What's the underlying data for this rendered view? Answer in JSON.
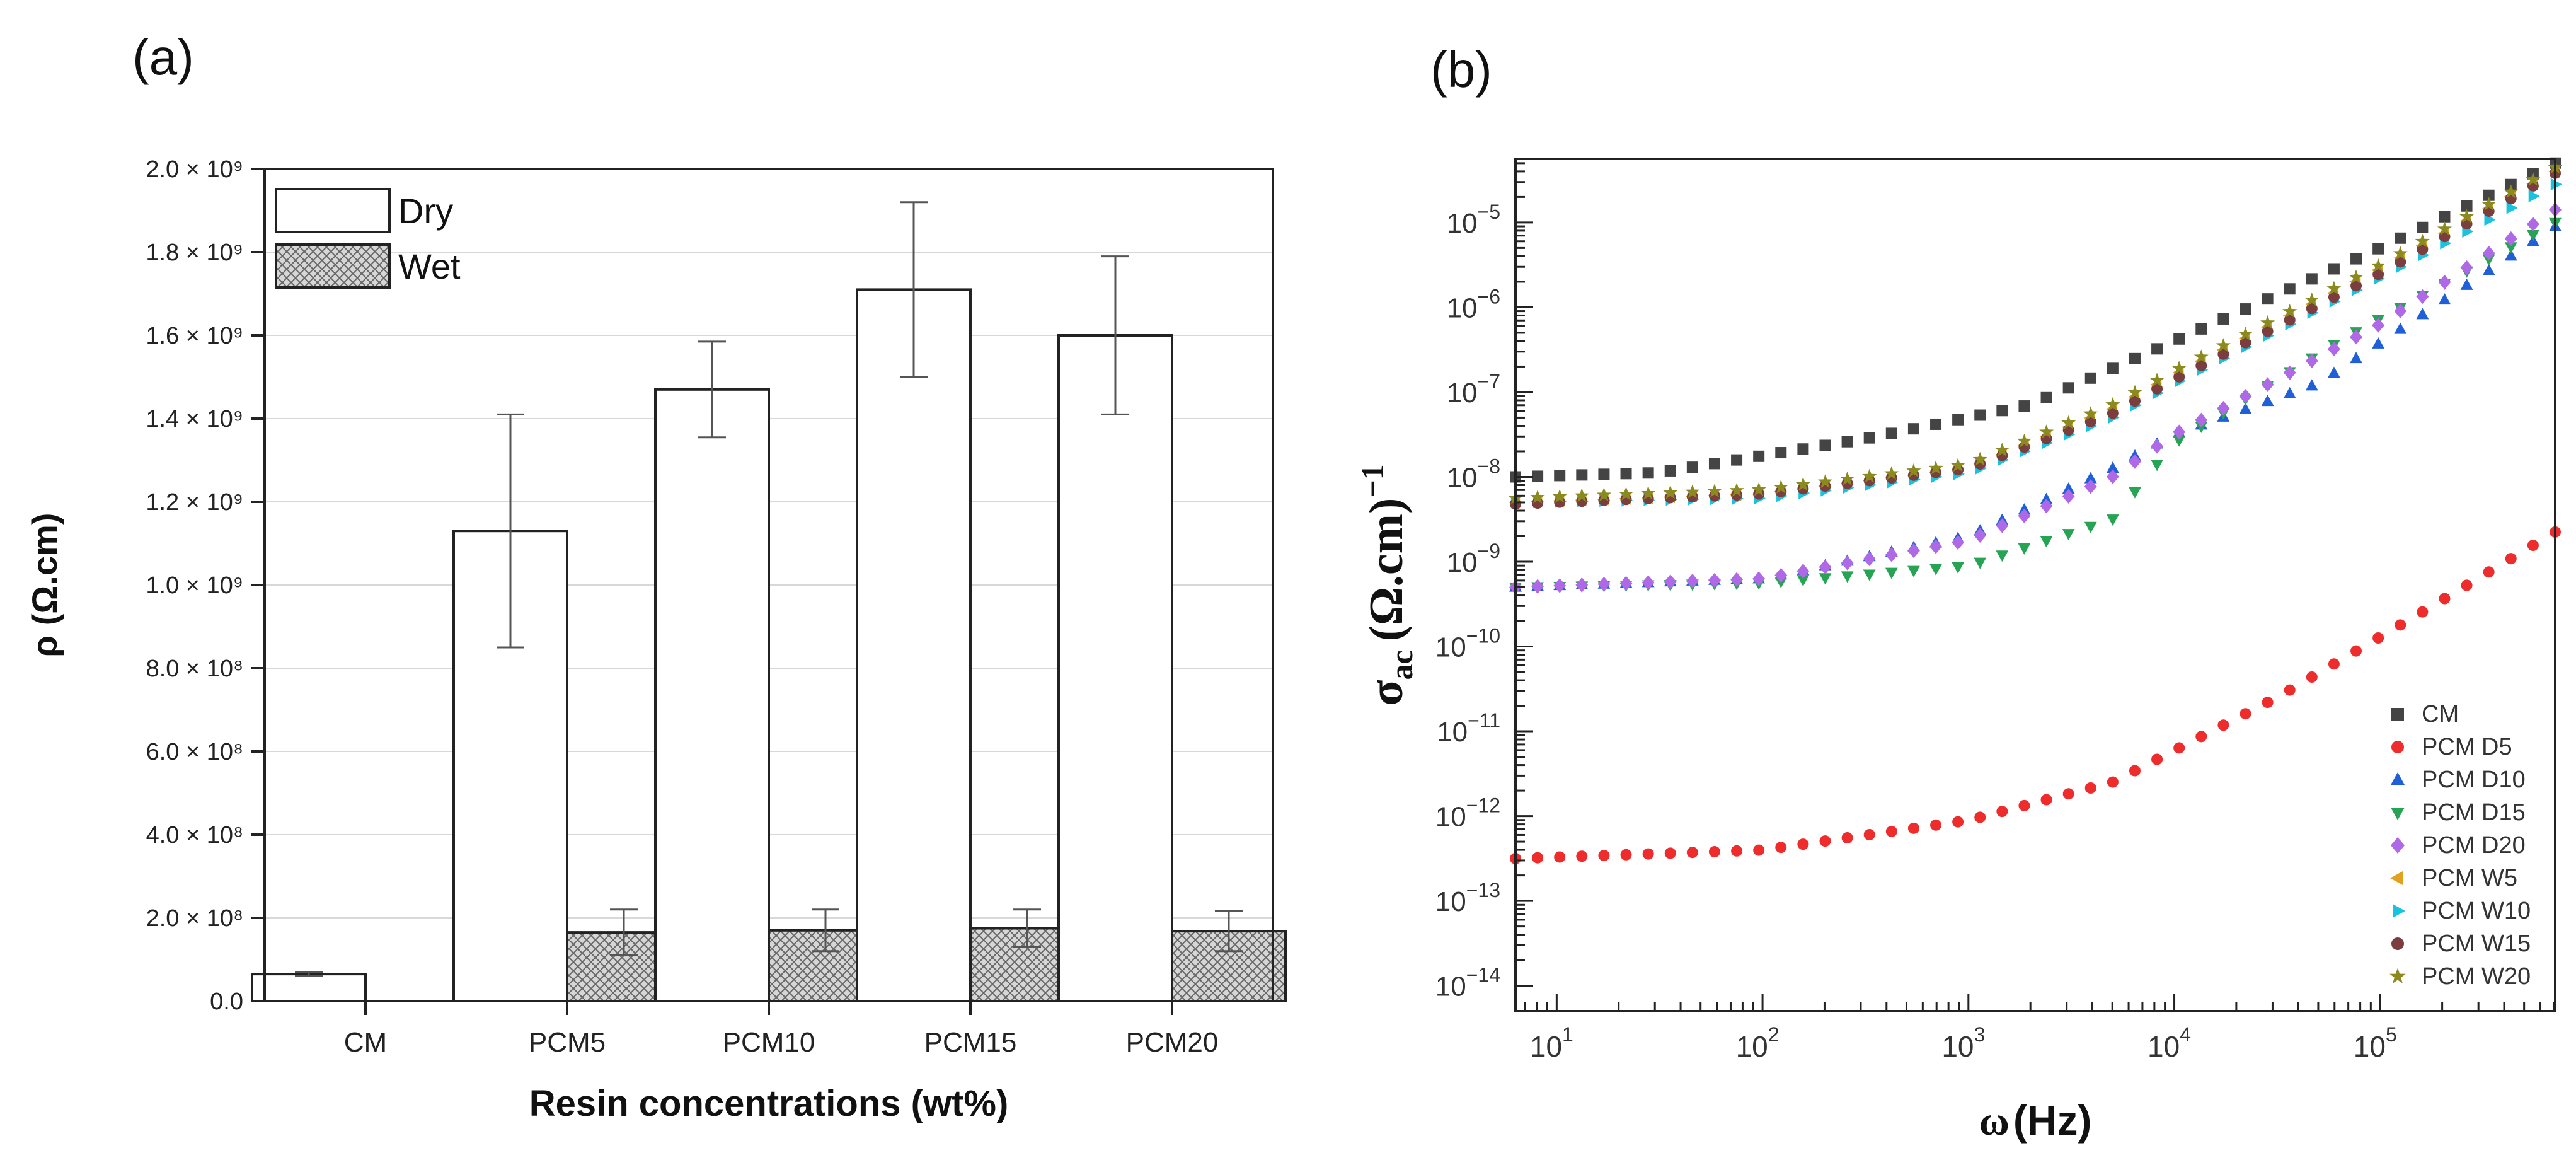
{
  "panels": {
    "a": {
      "label": "(a)"
    },
    "b": {
      "label": "(b)"
    }
  },
  "chart_data": [
    {
      "id": "a",
      "type": "bar",
      "title": "",
      "xlabel": "Resin concentrations (wt%)",
      "ylabel": "ρ (Ω.cm)",
      "categories": [
        "CM",
        "PCM5",
        "PCM10",
        "PCM15",
        "PCM20"
      ],
      "ylim": [
        0,
        2000000000
      ],
      "ytick_values": [
        0,
        200000000,
        400000000,
        600000000,
        800000000,
        1000000000,
        1200000000,
        1400000000,
        1600000000,
        1800000000,
        2000000000
      ],
      "ytick_labels": [
        "0.0",
        "2.0 × 10⁸",
        "4.0 × 10⁸",
        "6.0 × 10⁸",
        "8.0 × 10⁸",
        "1.0 × 10⁹",
        "1.2 × 10⁹",
        "1.4 × 10⁹",
        "1.6 × 10⁹",
        "1.8 × 10⁹",
        "2.0 × 10⁹"
      ],
      "legend_position": "top-left",
      "series": [
        {
          "name": "Dry",
          "pattern": "open",
          "values": [
            65000000,
            1130000000,
            1470000000,
            1710000000,
            1600000000
          ],
          "err": [
            5000000,
            280000000,
            115000000,
            210000000,
            190000000
          ]
        },
        {
          "name": "Wet",
          "pattern": "crosshatch",
          "values": [
            0,
            165000000,
            170000000,
            175000000,
            168000000
          ],
          "err": [
            0,
            55000000,
            50000000,
            45000000,
            48000000
          ]
        }
      ]
    },
    {
      "id": "b",
      "type": "scatter",
      "xscale": "log",
      "yscale": "log",
      "xlabel_main": "ω",
      "xlabel_unit": "(Hz)",
      "ylabel_main": "σ",
      "ylabel_sub": "ac",
      "ylabel_unit": "(Ω.cm)",
      "ylabel_sup": "−1",
      "xlim_log10": [
        0.8,
        5.85
      ],
      "ylim_log10": [
        -14.3,
        -4.25
      ],
      "xtick_exponents": [
        1,
        2,
        3,
        4,
        5
      ],
      "ytick_exponents": [
        -14,
        -13,
        -12,
        -11,
        -10,
        -9,
        -8,
        -7,
        -6,
        -5
      ],
      "tick_base": "10",
      "legend_position": "bottom-right",
      "n_points": 48,
      "series": [
        {
          "name": "CM",
          "color": "#444444",
          "marker": "square",
          "anchors": [
            [
              0.8,
              -8.0
            ],
            [
              1.5,
              -7.95
            ],
            [
              2.5,
              -7.55
            ],
            [
              3.3,
              -7.15
            ],
            [
              4.0,
              -6.4
            ],
            [
              5.0,
              -5.3
            ],
            [
              5.85,
              -4.3
            ]
          ]
        },
        {
          "name": "PCM D5",
          "color": "#ee2c2c",
          "marker": "circle",
          "anchors": [
            [
              0.8,
              -12.5
            ],
            [
              2.0,
              -12.4
            ],
            [
              3.0,
              -12.05
            ],
            [
              3.7,
              -11.6
            ],
            [
              4.5,
              -10.6
            ],
            [
              5.2,
              -9.6
            ],
            [
              5.85,
              -8.65
            ]
          ]
        },
        {
          "name": "PCM D10",
          "color": "#1f5fd8",
          "marker": "triangle-up",
          "anchors": [
            [
              0.8,
              -9.3
            ],
            [
              2.0,
              -9.2
            ],
            [
              2.5,
              -8.95
            ],
            [
              3.0,
              -8.7
            ],
            [
              3.7,
              -7.9
            ],
            [
              4.0,
              -7.5
            ],
            [
              4.7,
              -6.9
            ],
            [
              5.85,
              -5.05
            ]
          ]
        },
        {
          "name": "PCM D15",
          "color": "#27a453",
          "marker": "triangle-down",
          "anchors": [
            [
              0.8,
              -9.3
            ],
            [
              2.0,
              -9.25
            ],
            [
              3.0,
              -9.05
            ],
            [
              3.7,
              -8.5
            ],
            [
              4.0,
              -7.6
            ],
            [
              4.8,
              -6.4
            ],
            [
              5.85,
              -5.0
            ]
          ]
        },
        {
          "name": "PCM D20",
          "color": "#b069e6",
          "marker": "diamond",
          "anchors": [
            [
              0.8,
              -9.3
            ],
            [
              2.0,
              -9.2
            ],
            [
              3.0,
              -8.75
            ],
            [
              3.7,
              -8.0
            ],
            [
              4.0,
              -7.5
            ],
            [
              5.0,
              -6.2
            ],
            [
              5.85,
              -4.85
            ]
          ]
        },
        {
          "name": "PCM W5",
          "color": "#e0a21f",
          "marker": "triangle-left",
          "anchors": [
            [
              0.8,
              -8.3
            ],
            [
              2.0,
              -8.2
            ],
            [
              3.0,
              -7.9
            ],
            [
              3.7,
              -7.2
            ],
            [
              4.0,
              -6.8
            ],
            [
              5.0,
              -5.55
            ],
            [
              5.85,
              -4.4
            ]
          ]
        },
        {
          "name": "PCM W10",
          "color": "#19c3de",
          "marker": "triangle-right",
          "anchors": [
            [
              0.8,
              -8.3
            ],
            [
              2.0,
              -8.25
            ],
            [
              3.0,
              -7.95
            ],
            [
              3.7,
              -7.3
            ],
            [
              4.0,
              -6.9
            ],
            [
              5.0,
              -5.65
            ],
            [
              5.85,
              -4.55
            ]
          ]
        },
        {
          "name": "PCM W15",
          "color": "#7b3d3d",
          "marker": "circle",
          "anchors": [
            [
              0.8,
              -8.32
            ],
            [
              2.0,
              -8.2
            ],
            [
              3.0,
              -7.9
            ],
            [
              3.7,
              -7.25
            ],
            [
              4.0,
              -6.85
            ],
            [
              5.0,
              -5.6
            ],
            [
              5.85,
              -4.42
            ]
          ]
        },
        {
          "name": "PCM W20",
          "color": "#8a8a1f",
          "marker": "star",
          "anchors": [
            [
              0.8,
              -8.25
            ],
            [
              2.0,
              -8.15
            ],
            [
              3.0,
              -7.85
            ],
            [
              3.7,
              -7.15
            ],
            [
              4.0,
              -6.75
            ],
            [
              5.0,
              -5.5
            ],
            [
              5.85,
              -4.35
            ]
          ]
        }
      ]
    }
  ]
}
